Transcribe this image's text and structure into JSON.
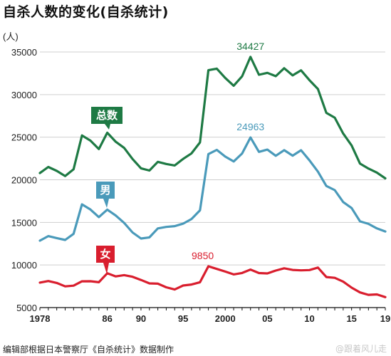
{
  "title": "自杀人数的变化(自杀统计)",
  "source": "编辑部根据日本警察厅《自杀统计》数据制作",
  "watermark": "@跟着风儿走",
  "chart_data": {
    "type": "line",
    "unit_label": "(人)",
    "xlim": [
      1978,
      2019
    ],
    "ylim": [
      5000,
      35000
    ],
    "yticks": [
      5000,
      10000,
      15000,
      20000,
      25000,
      30000,
      35000
    ],
    "ytick_labels": [
      "5000",
      "10000",
      "15000",
      "20000",
      "25000",
      "30000",
      "35000"
    ],
    "xticks": [
      1978,
      1986,
      1990,
      1995,
      2000,
      2005,
      2010,
      2015,
      2019
    ],
    "xtick_labels": [
      "1978",
      "86",
      "90",
      "95",
      "2000",
      "05",
      "10",
      "15",
      "19"
    ],
    "grid": "horizontal",
    "x": [
      1978,
      1979,
      1980,
      1981,
      1982,
      1983,
      1984,
      1985,
      1986,
      1987,
      1988,
      1989,
      1990,
      1991,
      1992,
      1993,
      1994,
      1995,
      1996,
      1997,
      1998,
      1999,
      2000,
      2001,
      2002,
      2003,
      2004,
      2005,
      2006,
      2007,
      2008,
      2009,
      2010,
      2011,
      2012,
      2013,
      2014,
      2015,
      2016,
      2017,
      2018,
      2019
    ],
    "series": [
      {
        "name": "总数",
        "color": "#1e7a44",
        "values": [
          20788,
          21503,
          21048,
          20434,
          21228,
          25202,
          24596,
          23599,
          25524,
          24460,
          23742,
          22436,
          21346,
          21084,
          22104,
          21851,
          21679,
          22445,
          23104,
          24391,
          32863,
          33048,
          31957,
          31042,
          32143,
          34427,
          32325,
          32552,
          32155,
          33093,
          32249,
          32845,
          31690,
          30651,
          27858,
          27283,
          25427,
          24025,
          21897,
          21321,
          20840,
          20169
        ],
        "peak_label": "34427",
        "badge": "总数"
      },
      {
        "name": "男",
        "color": "#4a9aba",
        "values": [
          12859,
          13386,
          13155,
          12942,
          13654,
          17116,
          16508,
          15624,
          16497,
          15802,
          14934,
          13818,
          13102,
          13242,
          14296,
          14468,
          14560,
          14853,
          15393,
          16416,
          23013,
          23512,
          22727,
          22144,
          23080,
          24963,
          23272,
          23540,
          22813,
          23478,
          22831,
          23472,
          22283,
          20955,
          19273,
          18787,
          17386,
          16681,
          15121,
          14826,
          14290,
          13937
        ],
        "peak_label": "24963",
        "badge": "男"
      },
      {
        "name": "女",
        "color": "#d91e2e",
        "values": [
          7929,
          8117,
          7893,
          7492,
          7574,
          8086,
          8088,
          7975,
          9027,
          8658,
          8808,
          8618,
          8244,
          7842,
          7808,
          7383,
          7119,
          7592,
          7711,
          7975,
          9850,
          9536,
          9230,
          8898,
          9063,
          9464,
          9053,
          9012,
          9342,
          9615,
          9418,
          9373,
          9407,
          9696,
          8585,
          8496,
          8041,
          7344,
          6776,
          6495,
          6550,
          6232
        ],
        "peak_label": "9850",
        "badge": "女"
      }
    ]
  }
}
